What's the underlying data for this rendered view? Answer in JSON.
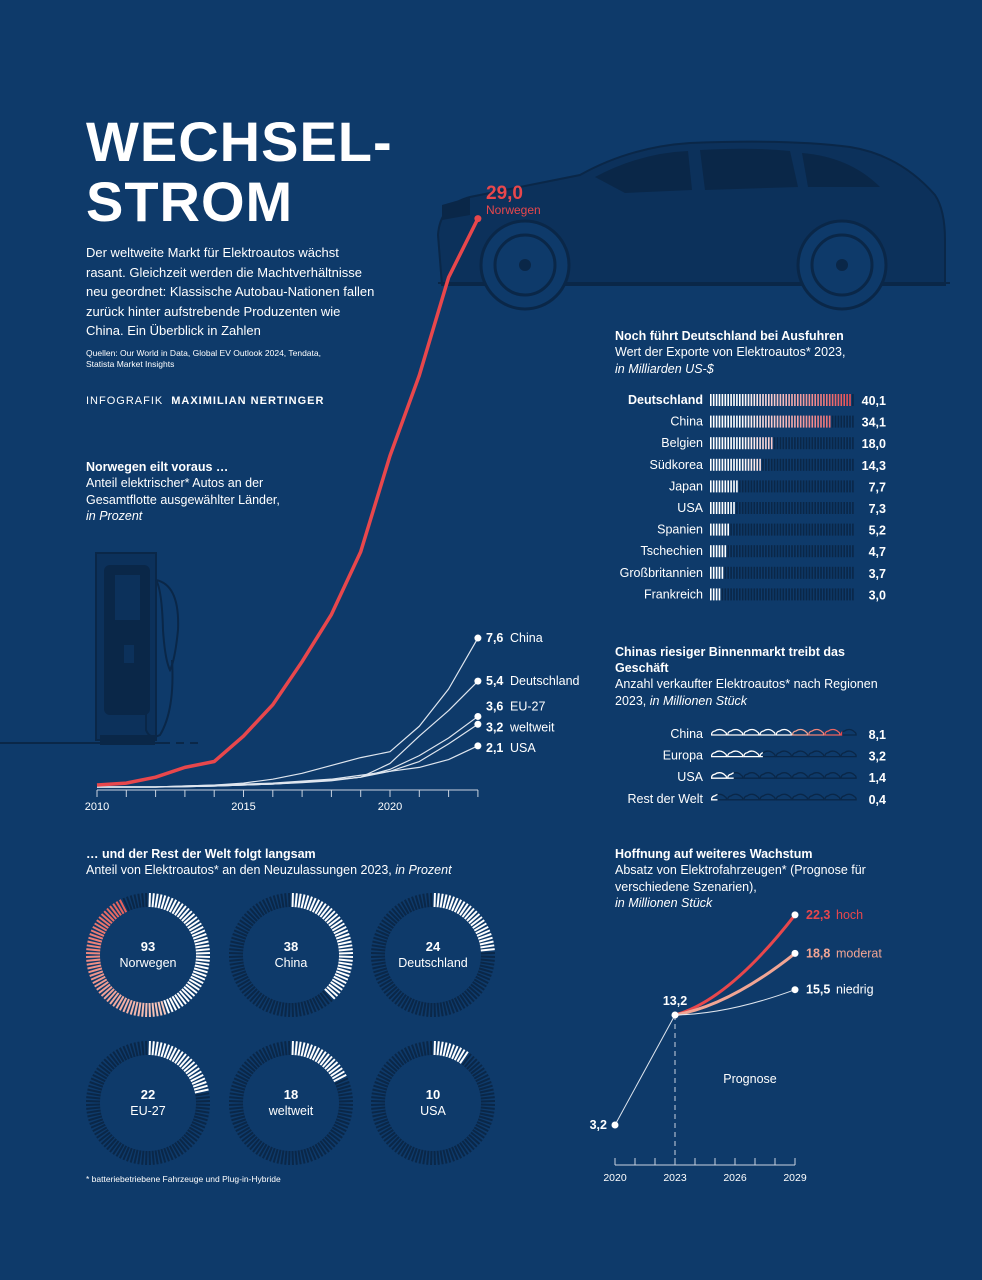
{
  "header": {
    "title_line1": "WECHSEL-",
    "title_line2": "STROM",
    "intro": "Der weltweite Markt für Elektroautos wächst rasant. Gleichzeit werden die Machtverhältnisse neu geordnet: Klassische Autobau-Nationen fallen zurück hinter aufstrebende Produzenten wie China. Ein Überblick in Zahlen",
    "sources": "Quellen: Our World in Data, Global EV Outlook 2024, Tendata, Statista Market Insights",
    "credit_label": "INFOGRAFIK",
    "credit_name": "MAXIMILIAN NERTINGER"
  },
  "footnote": "* batteriebetriebene Fahrzeuge und Plug-in-Hybride",
  "colors": {
    "background": "#0e3a6a",
    "red": "#e8474c",
    "salmon": "#f2a594",
    "dark": "#0a2748",
    "white": "#ffffff"
  },
  "chart_data": [
    {
      "type": "line",
      "title": "Norwegen eilt voraus …",
      "subtitle": "Anteil elektrischer* Autos an der Gesamtflotte ausgewählter Länder,",
      "unit": "in Prozent",
      "x": [
        2010,
        2011,
        2012,
        2013,
        2014,
        2015,
        2016,
        2017,
        2018,
        2019,
        2020,
        2021,
        2022,
        2023
      ],
      "xticks": [
        "2010",
        "2015",
        "2020"
      ],
      "ylim": [
        0,
        29
      ],
      "series": [
        {
          "name": "Norwegen",
          "label": "29,0",
          "highlight": true,
          "values": [
            0.1,
            0.2,
            0.5,
            1.0,
            1.3,
            2.6,
            4.2,
            6.4,
            8.8,
            12.0,
            16.9,
            21.0,
            26.0,
            29.0
          ]
        },
        {
          "name": "China",
          "label": "7,6",
          "values": [
            0,
            0,
            0,
            0.05,
            0.1,
            0.2,
            0.4,
            0.7,
            1.1,
            1.5,
            1.8,
            3.1,
            5.0,
            7.6
          ]
        },
        {
          "name": "Deutschland",
          "label": "5,4",
          "values": [
            0,
            0,
            0,
            0.02,
            0.05,
            0.1,
            0.15,
            0.25,
            0.35,
            0.5,
            1.2,
            2.6,
            3.9,
            5.4
          ]
        },
        {
          "name": "EU-27",
          "label": "3,6",
          "values": [
            0,
            0,
            0,
            0.02,
            0.05,
            0.1,
            0.15,
            0.22,
            0.32,
            0.5,
            0.9,
            1.6,
            2.5,
            3.6
          ]
        },
        {
          "name": "weltweit",
          "label": "3,2",
          "values": [
            0,
            0,
            0,
            0.02,
            0.05,
            0.1,
            0.15,
            0.25,
            0.35,
            0.5,
            0.8,
            1.3,
            2.2,
            3.2
          ]
        },
        {
          "name": "USA",
          "label": "2,1",
          "values": [
            0,
            0,
            0,
            0.05,
            0.1,
            0.15,
            0.2,
            0.3,
            0.4,
            0.6,
            0.8,
            1.0,
            1.4,
            2.1
          ]
        }
      ]
    },
    {
      "type": "bar",
      "title": "Noch führt Deutschland bei Ausfuhren",
      "subtitle": "Wert der Exporte von Elektroautos* 2023,",
      "unit": "in Milliarden US-$",
      "categories": [
        "Deutschland",
        "China",
        "Belgien",
        "Südkorea",
        "Japan",
        "USA",
        "Spanien",
        "Tschechien",
        "Großbritannien",
        "Frankreich"
      ],
      "values": [
        40.1,
        34.1,
        18.0,
        14.3,
        7.7,
        7.3,
        5.2,
        4.7,
        3.7,
        3.0
      ],
      "labels": [
        "40,1",
        "34,1",
        "18,0",
        "14,3",
        "7,7",
        "7,3",
        "5,2",
        "4,7",
        "3,7",
        "3,0"
      ],
      "xlim": [
        0,
        41
      ]
    },
    {
      "type": "bar",
      "title": "Chinas riesiger Binnenmarkt treibt das Geschäft",
      "subtitle": "Anzahl verkaufter Elektroautos* nach Regionen",
      "unit_prefix": "2023,",
      "unit": "in Millionen Stück",
      "categories": [
        "China",
        "Europa",
        "USA",
        "Rest der Welt"
      ],
      "values": [
        8.1,
        3.2,
        1.4,
        0.4
      ],
      "labels": [
        "8,1",
        "3,2",
        "1,4",
        "0,4"
      ],
      "xlim": [
        0,
        9
      ]
    },
    {
      "type": "pie",
      "title": "… und der Rest der Welt folgt langsam",
      "subtitle": "Anteil von Elektroautos* an den Neuzulassungen 2023,",
      "unit": "in Prozent",
      "categories": [
        "Norwegen",
        "China",
        "Deutschland",
        "EU-27",
        "weltweit",
        "USA"
      ],
      "values": [
        93,
        38,
        24,
        22,
        18,
        10
      ]
    },
    {
      "type": "line",
      "title": "Hoffnung auf weiteres Wachstum",
      "subtitle": "Absatz von Elektrofahrzeugen* (Prognose für verschiedene Szenarien),",
      "unit": "in Millionen Stück",
      "annotation": "Prognose",
      "xticks": [
        "2020",
        "2023",
        "2026",
        "2029"
      ],
      "history": {
        "x": [
          2020,
          2023
        ],
        "values": [
          3.2,
          13.2
        ],
        "labels": [
          "3,2",
          "13,2"
        ]
      },
      "series": [
        {
          "name": "hoch",
          "label": "22,3",
          "x": [
            2023,
            2029
          ],
          "values": [
            13.2,
            22.3
          ]
        },
        {
          "name": "moderat",
          "label": "18,8",
          "x": [
            2023,
            2029
          ],
          "values": [
            13.2,
            18.8
          ]
        },
        {
          "name": "niedrig",
          "label": "15,5",
          "x": [
            2023,
            2029
          ],
          "values": [
            13.2,
            15.5
          ]
        }
      ]
    }
  ]
}
